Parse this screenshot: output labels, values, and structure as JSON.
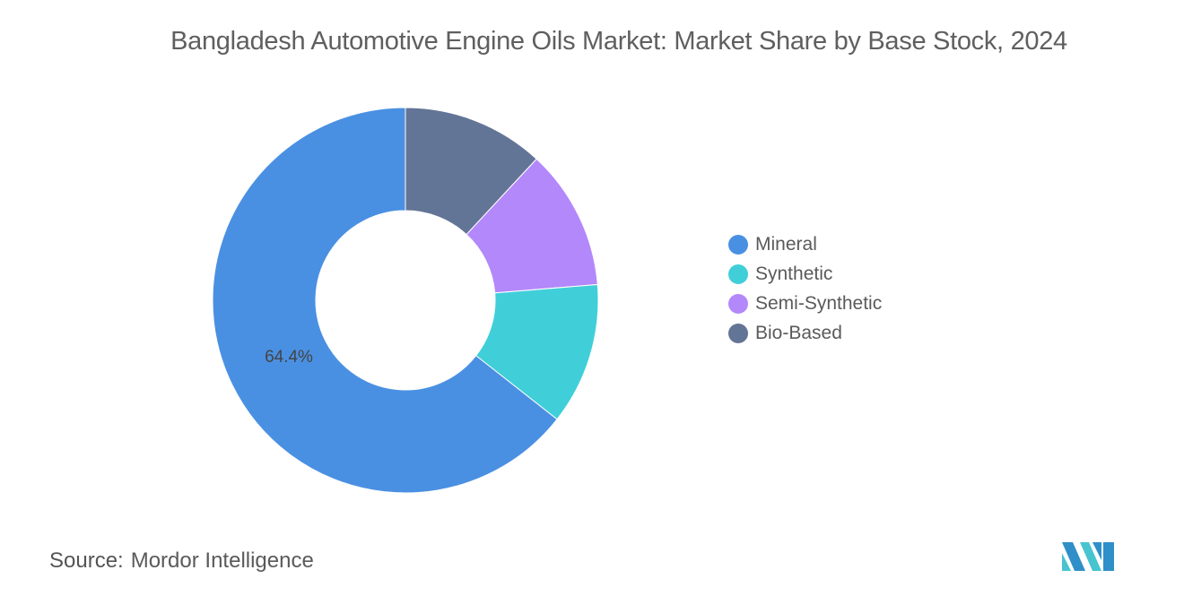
{
  "chart_data": {
    "type": "pie",
    "donut": true,
    "title": "Bangladesh Automotive Engine Oils Market: Market Share by Base Stock, 2024",
    "categories": [
      "Mineral",
      "Synthetic",
      "Semi-Synthetic",
      "Bio-Based"
    ],
    "values": [
      64.4,
      11.9,
      11.8,
      11.9
    ],
    "colors": [
      "#4a90e2",
      "#40cfd9",
      "#b388fb",
      "#637596"
    ],
    "data_labels": [
      {
        "category": "Mineral",
        "text": "64.4%"
      }
    ],
    "legend_position": "right"
  },
  "source": {
    "label": "Source:",
    "value": "Mordor Intelligence"
  }
}
